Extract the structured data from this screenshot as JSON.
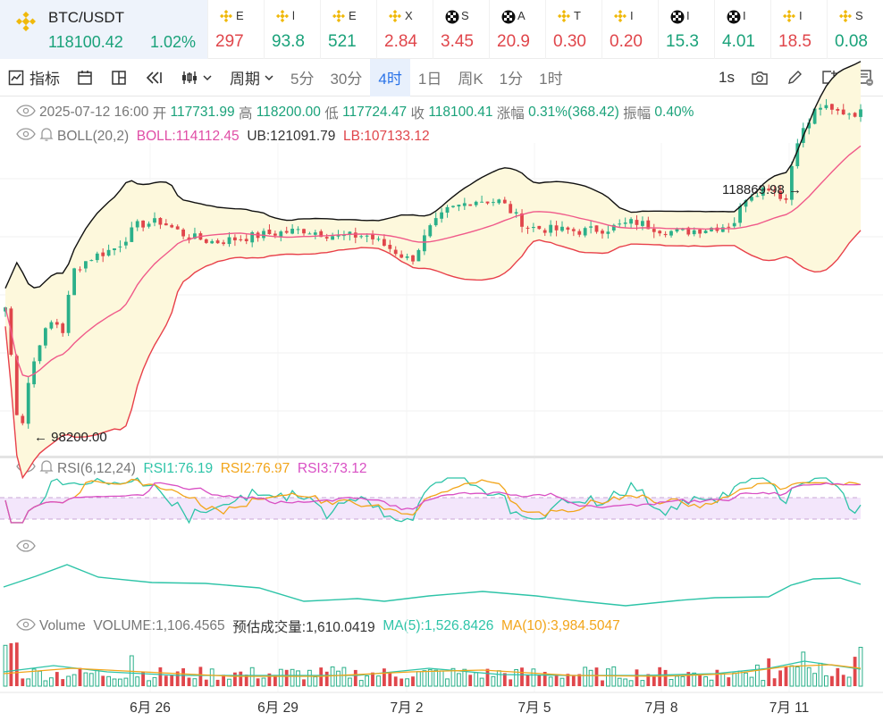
{
  "pair": {
    "symbol": "BTC/USDT",
    "price": "118100.42",
    "change": "1.02%"
  },
  "tickers": [
    {
      "icon": "bnb-coin-icon",
      "name": "E",
      "value": "297",
      "dir": "dn"
    },
    {
      "icon": "bnb-coin-icon",
      "name": "l",
      "value": "93.8",
      "dir": "up"
    },
    {
      "icon": "bnb-coin-icon",
      "name": "E",
      "value": "521",
      "dir": "up"
    },
    {
      "icon": "bnb-coin-icon",
      "name": "X",
      "value": "2.84",
      "dir": "dn"
    },
    {
      "icon": "checker-coin-icon",
      "name": "S",
      "value": "3.45",
      "dir": "dn"
    },
    {
      "icon": "checker-coin-icon",
      "name": "A",
      "value": "20.9",
      "dir": "dn"
    },
    {
      "icon": "bnb-coin-icon",
      "name": "T",
      "value": "0.30",
      "dir": "dn"
    },
    {
      "icon": "bnb-coin-icon",
      "name": "I",
      "value": "0.20",
      "dir": "dn"
    },
    {
      "icon": "checker-coin-icon",
      "name": "I",
      "value": "15.3",
      "dir": "up"
    },
    {
      "icon": "checker-coin-icon",
      "name": "I",
      "value": "4.01",
      "dir": "up"
    },
    {
      "icon": "bnb-coin-icon",
      "name": "I",
      "value": "18.5",
      "dir": "dn"
    },
    {
      "icon": "bnb-coin-icon",
      "name": "S",
      "value": "0.08",
      "dir": "up"
    }
  ],
  "toolbar": {
    "indicators": "指标",
    "period": "周期",
    "intervals": [
      "5分",
      "30分",
      "4时",
      "1日",
      "周K",
      "1分",
      "1时"
    ],
    "active_interval": "4时",
    "refresh": "1s"
  },
  "ohlc": {
    "date": "2025-07-12 16:00",
    "open_label": "开",
    "open": "117731.99",
    "high_label": "高",
    "high": "118200.00",
    "low_label": "低",
    "low": "117724.47",
    "close_label": "收",
    "close": "118100.41",
    "chg_label": "涨幅",
    "chg": "0.31%(368.42)",
    "amp_label": "振幅",
    "amp": "0.40%"
  },
  "boll": {
    "name": "BOLL(20,2)",
    "mid": "BOLL:114112.45",
    "ub": "UB:121091.79",
    "lb": "LB:107133.12"
  },
  "rsi": {
    "name": "RSI(6,12,24)",
    "rsi1": "RSI1:76.19",
    "rsi2": "RSI2:76.97",
    "rsi3": "RSI3:73.12"
  },
  "volume": {
    "name": "Volume",
    "vol": "VOLUME:1,106.4565",
    "est": "预估成交量:1,610.0419",
    "ma5": "MA(5):1,526.8426",
    "ma10": "MA(10):3,984.5047"
  },
  "chart_data": {
    "type": "candlestick",
    "interval": "4h",
    "x_labels": [
      "6月 26",
      "6月 29",
      "7月 2",
      "7月 5",
      "7月 8",
      "7月 11"
    ],
    "max_label": "118869.98",
    "min_label": "98200.00",
    "price_range": [
      97800,
      120500
    ],
    "colors": {
      "up": "#2bb08a",
      "down": "#e0464b",
      "boll_mid": "#f05a8a",
      "boll_ub": "#111111",
      "boll_lb": "#e8404a",
      "band": "#fdf8dc",
      "rsi1": "#2ec4a8",
      "rsi2": "#f2a51a",
      "rsi3": "#d94fc4"
    },
    "rsi_band": [
      30,
      70
    ]
  }
}
